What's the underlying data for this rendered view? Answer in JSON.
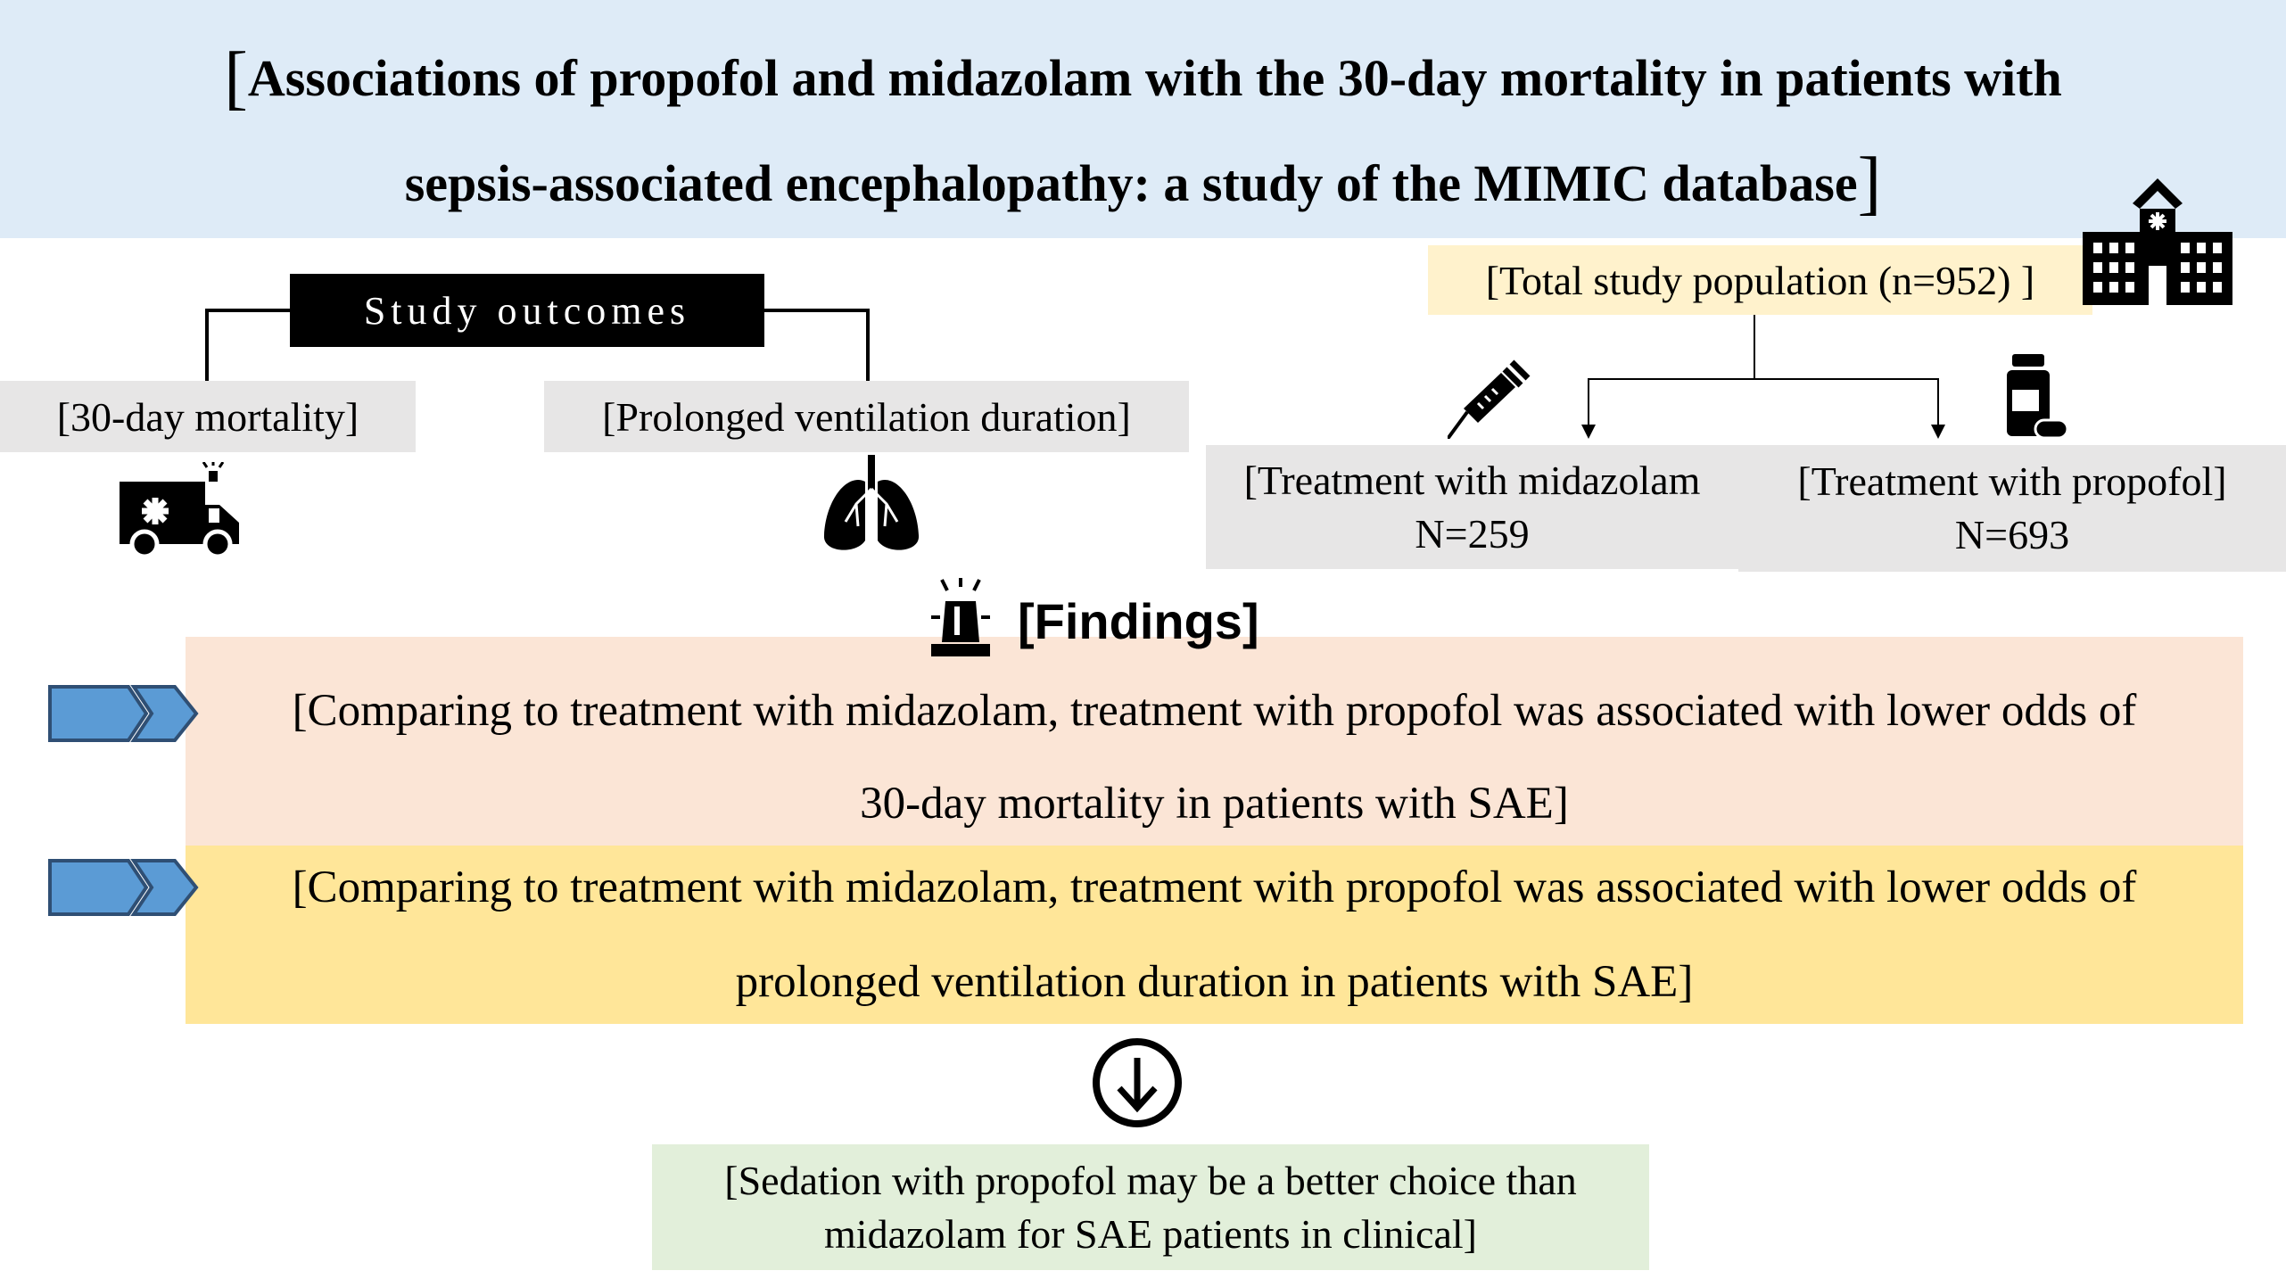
{
  "title": {
    "line1": "Associations of propofol and midazolam with the 30-day mortality in patients with",
    "line2": "sepsis-associated encephalopathy: a study of the MIMIC database",
    "open_bracket": "[",
    "close_bracket": "]"
  },
  "outcomes": {
    "heading": "Study outcomes",
    "items": [
      {
        "label": "[30-day mortality]",
        "icon": "ambulance-icon"
      },
      {
        "label": "[Prolonged ventilation duration]",
        "icon": "lungs-icon"
      }
    ]
  },
  "population": {
    "total": "[Total study population (n=952) ]",
    "icon": "hospital-icon",
    "groups": [
      {
        "label": "[Treatment with midazolam",
        "n": "N=259",
        "icon": "syringe-icon"
      },
      {
        "label": "[Treatment with propofol]",
        "n": "N=693",
        "icon": "pill-bottle-icon"
      }
    ]
  },
  "findings": {
    "heading": "[Findings]",
    "icon": "siren-icon",
    "items": [
      {
        "line1": "[Comparing to treatment with midazolam, treatment with propofol was associated with lower odds of",
        "line2": "30-day mortality in patients with SAE]"
      },
      {
        "line1": "[Comparing to treatment with midazolam, treatment with propofol was associated with lower odds of",
        "line2": "prolonged ventilation duration in patients with SAE]"
      }
    ]
  },
  "conclusion": {
    "line1": "[Sedation with propofol may be a better choice than",
    "line2": "midazolam for SAE patients in clinical]"
  },
  "colors": {
    "title_band": "#deebf7",
    "gray_box": "#e7e6e6",
    "population_box": "#fff2cc",
    "finding1_box": "#fbe5d6",
    "finding2_box": "#ffe699",
    "conclusion_box": "#e2efda",
    "chevron": "#5b9bd5"
  }
}
